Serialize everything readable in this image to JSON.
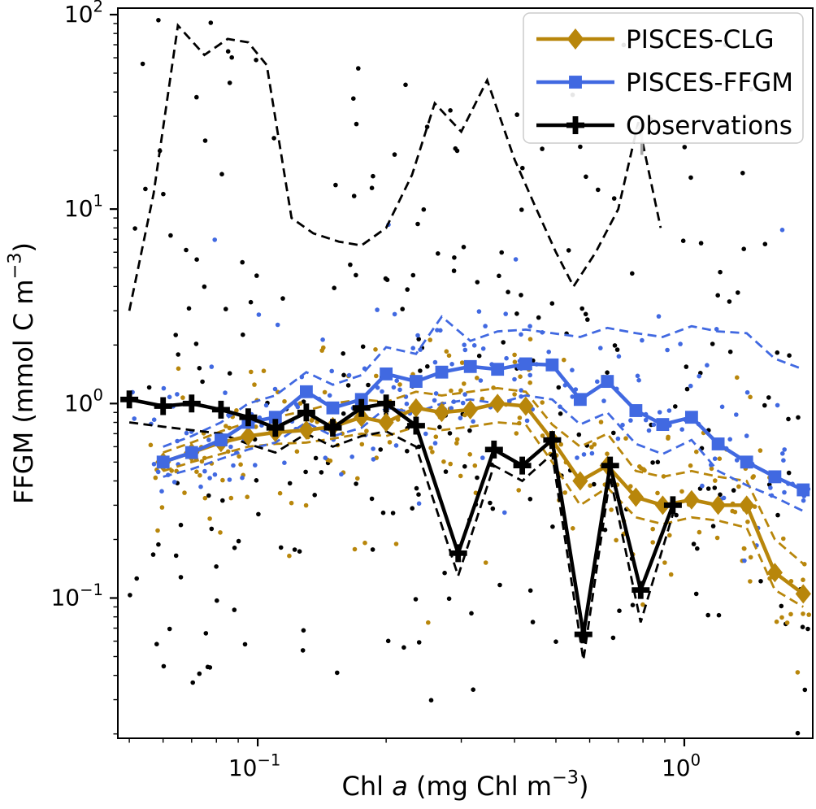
{
  "chart_data": {
    "type": "line+scatter",
    "title": "",
    "xscale": "log",
    "yscale": "log",
    "xlim": [
      0.047,
      2.0
    ],
    "ylim": [
      0.019,
      108
    ],
    "xlabel": "Chl a (mg Chl m⁻³)",
    "ylabel": "FFGM (mmol C m⁻³)",
    "xlabel_parts": [
      {
        "t": "Chl "
      },
      {
        "t": "a",
        "style": "italic"
      },
      {
        "t": " (mg Chl m"
      },
      {
        "t": "−3",
        "sup": true
      },
      {
        "t": ")"
      }
    ],
    "ylabel_parts": [
      {
        "t": "FFGM (mmol C m"
      },
      {
        "t": "−3",
        "sup": true
      },
      {
        "t": ")"
      }
    ],
    "x_ticks": [
      {
        "v": 0.1,
        "base": "10",
        "exp": "−1"
      },
      {
        "v": 1,
        "base": "10",
        "exp": "0"
      }
    ],
    "y_ticks": [
      {
        "v": 0.1,
        "base": "10",
        "exp": "−1"
      },
      {
        "v": 1,
        "base": "10",
        "exp": "0"
      },
      {
        "v": 10,
        "base": "10",
        "exp": "1"
      },
      {
        "v": 100,
        "base": "10",
        "exp": "2"
      }
    ],
    "colors": {
      "pisces_clg": "#B8860B",
      "pisces_ffgm": "#4169E1",
      "observations": "#000000"
    },
    "legend": {
      "position": "upper right",
      "entries": [
        {
          "label": "PISCES-CLG",
          "series": "PISCES-CLG"
        },
        {
          "label": "PISCES-FFGM",
          "series": "PISCES-FFGM"
        },
        {
          "label": "Observations",
          "series": "Observations"
        }
      ]
    },
    "series": [
      {
        "name": "PISCES-CLG",
        "role": "median",
        "color": "#B8860B",
        "marker": "diamond",
        "line": "solid",
        "x": [
          0.06,
          0.07,
          0.082,
          0.095,
          0.11,
          0.13,
          0.15,
          0.175,
          0.2,
          0.235,
          0.27,
          0.315,
          0.365,
          0.425,
          0.49,
          0.57,
          0.66,
          0.77,
          0.89,
          1.04,
          1.2,
          1.4,
          1.63,
          1.9
        ],
        "y": [
          0.5,
          0.56,
          0.63,
          0.68,
          0.71,
          0.73,
          0.76,
          0.85,
          0.8,
          0.95,
          0.9,
          0.93,
          1.0,
          0.97,
          0.65,
          0.4,
          0.48,
          0.33,
          0.3,
          0.32,
          0.3,
          0.3,
          0.135,
          0.105
        ]
      },
      {
        "name": "PISCES-CLG-upper",
        "role": "envelope",
        "color": "#B8860B",
        "line": "dashed",
        "x": [
          0.06,
          0.07,
          0.082,
          0.095,
          0.11,
          0.13,
          0.15,
          0.175,
          0.2,
          0.235,
          0.27,
          0.315,
          0.365,
          0.425,
          0.49,
          0.57,
          0.66,
          0.77,
          0.89,
          1.04,
          1.2,
          1.4,
          1.63,
          1.9
        ],
        "y": [
          0.56,
          0.63,
          0.72,
          0.8,
          0.85,
          0.92,
          1.0,
          1.05,
          1.02,
          1.15,
          1.1,
          1.15,
          1.2,
          1.15,
          0.78,
          0.6,
          0.7,
          0.45,
          0.42,
          0.45,
          0.42,
          0.4,
          0.2,
          0.15
        ]
      },
      {
        "name": "PISCES-CLG-lower",
        "role": "envelope",
        "color": "#B8860B",
        "line": "dashed",
        "x": [
          0.06,
          0.07,
          0.082,
          0.095,
          0.11,
          0.13,
          0.15,
          0.175,
          0.2,
          0.235,
          0.27,
          0.315,
          0.365,
          0.425,
          0.49,
          0.57,
          0.66,
          0.77,
          0.89,
          1.04,
          1.2,
          1.4,
          1.63,
          1.9
        ],
        "y": [
          0.45,
          0.5,
          0.55,
          0.6,
          0.62,
          0.63,
          0.66,
          0.7,
          0.68,
          0.76,
          0.73,
          0.76,
          0.8,
          0.78,
          0.5,
          0.3,
          0.37,
          0.26,
          0.24,
          0.26,
          0.25,
          0.23,
          0.11,
          0.09
        ]
      },
      {
        "name": "PISCES-FFGM",
        "role": "median",
        "color": "#4169E1",
        "marker": "square",
        "line": "solid",
        "x": [
          0.06,
          0.07,
          0.082,
          0.095,
          0.11,
          0.13,
          0.15,
          0.175,
          0.2,
          0.235,
          0.27,
          0.315,
          0.365,
          0.425,
          0.49,
          0.57,
          0.66,
          0.77,
          0.89,
          1.04,
          1.2,
          1.4,
          1.63,
          1.9
        ],
        "y": [
          0.5,
          0.56,
          0.65,
          0.8,
          0.85,
          1.15,
          0.95,
          1.05,
          1.42,
          1.3,
          1.45,
          1.55,
          1.5,
          1.6,
          1.58,
          1.05,
          1.3,
          0.92,
          0.78,
          0.85,
          0.62,
          0.5,
          0.42,
          0.36
        ]
      },
      {
        "name": "PISCES-FFGM-upper",
        "role": "envelope",
        "color": "#4169E1",
        "line": "dashed",
        "x": [
          0.06,
          0.07,
          0.082,
          0.095,
          0.11,
          0.13,
          0.15,
          0.175,
          0.2,
          0.235,
          0.27,
          0.315,
          0.365,
          0.425,
          0.49,
          0.57,
          0.66,
          0.77,
          0.89,
          1.04,
          1.2,
          1.4,
          1.63,
          1.9
        ],
        "y": [
          0.6,
          0.68,
          0.8,
          1.0,
          1.1,
          1.45,
          1.25,
          1.4,
          1.95,
          1.8,
          2.8,
          2.1,
          2.35,
          2.4,
          2.3,
          2.2,
          2.45,
          2.3,
          2.2,
          2.5,
          2.35,
          2.3,
          1.7,
          1.5
        ]
      },
      {
        "name": "PISCES-FFGM-lower",
        "role": "envelope",
        "color": "#4169E1",
        "line": "dashed",
        "x": [
          0.06,
          0.07,
          0.082,
          0.095,
          0.11,
          0.13,
          0.15,
          0.175,
          0.2,
          0.235,
          0.27,
          0.315,
          0.365,
          0.425,
          0.49,
          0.57,
          0.66,
          0.77,
          0.89,
          1.04,
          1.2,
          1.4,
          1.63,
          1.9
        ],
        "y": [
          0.42,
          0.46,
          0.52,
          0.58,
          0.63,
          0.8,
          0.68,
          0.75,
          0.95,
          0.9,
          1.0,
          1.05,
          1.0,
          1.1,
          1.05,
          0.78,
          0.9,
          0.62,
          0.55,
          0.65,
          0.45,
          0.38,
          0.33,
          0.28
        ]
      },
      {
        "name": "Observations",
        "role": "median",
        "color": "#000000",
        "marker": "plus",
        "line": "solid",
        "x": [
          0.05,
          0.06,
          0.07,
          0.082,
          0.095,
          0.11,
          0.13,
          0.15,
          0.175,
          0.2,
          0.235,
          0.295,
          0.358,
          0.417,
          0.49,
          0.58,
          0.67,
          0.79,
          0.94
        ],
        "y": [
          1.05,
          0.97,
          1.0,
          0.93,
          0.85,
          0.75,
          0.9,
          0.75,
          0.95,
          1.0,
          0.77,
          0.17,
          0.58,
          0.48,
          0.65,
          0.065,
          0.48,
          0.11,
          0.3
        ]
      },
      {
        "name": "Observations-upper",
        "role": "envelope",
        "color": "#000000",
        "line": "dashed",
        "x": [
          0.05,
          0.057,
          0.065,
          0.075,
          0.085,
          0.095,
          0.105,
          0.12,
          0.135,
          0.155,
          0.175,
          0.2,
          0.23,
          0.26,
          0.3,
          0.345,
          0.4,
          0.45,
          0.5,
          0.55,
          0.62,
          0.7,
          0.78,
          0.88
        ],
        "y": [
          3.0,
          12,
          88,
          62,
          75,
          72,
          55,
          9,
          7.5,
          6.8,
          6.5,
          8,
          15,
          35,
          25,
          46,
          18,
          10,
          6,
          4,
          6,
          10,
          28,
          8
        ]
      },
      {
        "name": "Observations-lower",
        "role": "envelope",
        "color": "#000000",
        "line": "dashed",
        "x": [
          0.05,
          0.06,
          0.07,
          0.082,
          0.095,
          0.11,
          0.13,
          0.15,
          0.175,
          0.2,
          0.235,
          0.295,
          0.358,
          0.417,
          0.49,
          0.58,
          0.67,
          0.79,
          0.94
        ],
        "y": [
          0.8,
          0.76,
          0.73,
          0.7,
          0.62,
          0.56,
          0.7,
          0.6,
          0.68,
          0.72,
          0.6,
          0.13,
          0.48,
          0.4,
          0.55,
          0.048,
          0.42,
          0.075,
          0.27
        ]
      }
    ],
    "scatter": [
      {
        "name": "observations-points",
        "color": "#000000",
        "n": 270,
        "seed": 11,
        "x_min": 0.046,
        "x_max": 2.0,
        "center": 0.8,
        "sigma": 0.85,
        "tail_frac": 0.2,
        "tail_lo": -1.55,
        "tail_hi": 1.98
      },
      {
        "name": "pisces-clg-points",
        "color": "#B8860B",
        "n": 200,
        "seed": 22,
        "x_min": 0.055,
        "x_max": 2.0,
        "base": "PISCES-CLG",
        "sigma": 0.22,
        "tail_frac": 0.06,
        "tail_lo": -1.2,
        "tail_hi": 0.35
      },
      {
        "name": "pisces-ffgm-points",
        "color": "#4169E1",
        "n": 200,
        "seed": 33,
        "x_min": 0.05,
        "x_max": 2.0,
        "base": "PISCES-FFGM",
        "sigma": 0.2,
        "tail_frac": 0.06,
        "tail_lo": -0.7,
        "tail_hi": 0.95
      }
    ],
    "annotations": [
      {
        "name": "gray-arrow",
        "x": 0.795,
        "y_from": 19,
        "y_to": 29,
        "color": "#a6a6a6"
      }
    ]
  }
}
